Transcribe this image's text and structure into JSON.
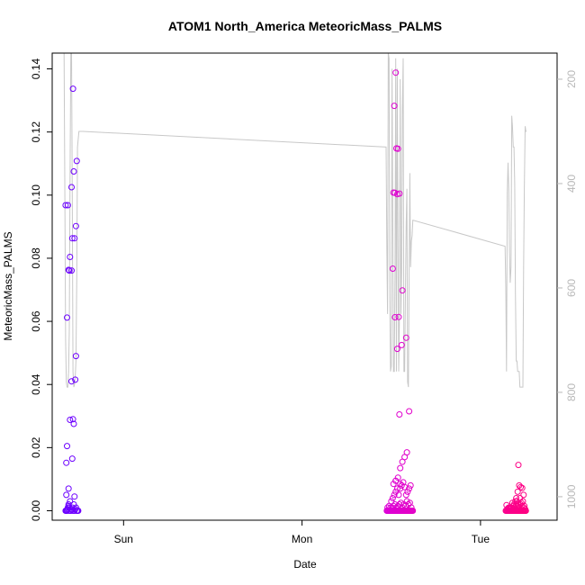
{
  "chart_data": {
    "type": "scatter",
    "title": "ATOM1 North_America MeteoricMass_PALMS",
    "xlabel": "Date",
    "ylabel": "MeteoricMass_PALMS",
    "x_ticks": [
      {
        "label": "Sun",
        "hours": 24
      },
      {
        "label": "Mon",
        "hours": 48
      },
      {
        "label": "Tue",
        "hours": 72
      }
    ],
    "xlim_hours": [
      14.4,
      82.3
    ],
    "ylim": [
      -0.003,
      0.145
    ],
    "y_ticks": [
      0.0,
      0.02,
      0.04,
      0.06,
      0.08,
      0.1,
      0.12,
      0.14
    ],
    "y_ticks_labels": [
      "0.00",
      "0.02",
      "0.04",
      "0.06",
      "0.08",
      "0.10",
      "0.12",
      "0.14"
    ],
    "y2lim": [
      1045,
      150
    ],
    "y2_ticks": [
      200,
      400,
      600,
      800,
      1000
    ],
    "y2_ticks_labels": [
      "200",
      "400",
      "600",
      "800",
      "1000"
    ],
    "colors": {
      "start": "#6a00ff",
      "mid": "#cc00ff",
      "end": "#ff0080",
      "pressure_line": "#c8c8c8"
    },
    "pressure": {
      "hours": [
        16.0,
        16.1,
        16.2,
        16.3,
        16.4,
        16.5,
        16.6,
        16.7,
        16.8,
        16.9,
        17.0,
        17.1,
        17.2,
        17.3,
        17.4,
        17.5,
        17.6,
        17.7,
        17.8,
        18.0,
        18.1,
        18.2,
        18.3,
        18.4,
        18.5,
        59.3,
        59.4,
        59.5,
        59.6,
        59.7,
        59.8,
        59.9,
        60.0,
        60.1,
        60.2,
        60.3,
        60.4,
        60.5,
        60.6,
        60.7,
        60.8,
        60.9,
        61.0,
        61.1,
        61.2,
        61.3,
        61.4,
        61.5,
        61.6,
        61.7,
        61.8,
        61.9,
        62.0,
        62.1,
        62.2,
        62.3,
        62.4,
        62.5,
        62.6,
        62.7,
        62.8,
        62.9,
        75.3,
        75.4,
        75.5,
        75.6,
        75.7,
        75.8,
        75.9,
        76.0,
        76.1,
        76.2,
        76.3,
        76.4,
        76.5,
        76.6,
        76.7,
        76.8,
        76.9,
        77.0,
        77.1,
        77.2,
        77.3,
        77.4,
        77.5,
        77.6,
        77.7,
        77.8,
        77.9,
        78.0,
        78.1,
        78.2
      ],
      "values": [
        150,
        400,
        700,
        780,
        790,
        790,
        760,
        680,
        400,
        150,
        150,
        420,
        760,
        790,
        785,
        770,
        740,
        580,
        330,
        300,
        300,
        300,
        300,
        300,
        300,
        330,
        520,
        650,
        150,
        160,
        620,
        760,
        750,
        180,
        450,
        760,
        760,
        580,
        160,
        760,
        180,
        500,
        760,
        660,
        200,
        650,
        570,
        260,
        160,
        760,
        760,
        610,
        480,
        410,
        780,
        790,
        570,
        380,
        560,
        510,
        500,
        470,
        520,
        600,
        760,
        420,
        360,
        410,
        530,
        590,
        560,
        270,
        290,
        330,
        330,
        400,
        610,
        740,
        740,
        760,
        760,
        760,
        790,
        790,
        790,
        790,
        790,
        560,
        410,
        290,
        300,
        300
      ]
    },
    "series": [
      {
        "x": [
          16.2,
          16.3,
          16.4,
          16.4,
          16.5,
          16.5,
          16.6,
          16.6,
          16.7,
          16.7,
          16.8,
          16.9,
          17.0,
          17.1,
          17.2,
          17.3,
          17.4,
          17.5,
          17.6,
          17.7,
          17.8,
          17.9,
          16.3,
          16.6,
          17.1,
          17.2,
          17.3,
          17.4,
          16.3,
          16.4,
          16.8,
          17.0,
          17.5,
          16.4,
          16.7,
          17.0,
          17.6,
          16.6,
          16.8,
          17.1,
          17.4,
          17.6,
          16.2,
          16.5,
          17.0,
          17.3,
          17.7,
          17.2
        ],
        "y": [
          0.0,
          0.0,
          0.0,
          0.0003,
          0.0005,
          0.001,
          0.0015,
          0.002,
          0.0,
          0.001,
          0.003,
          0.0,
          0.0005,
          0.001,
          0.0,
          0.002,
          0.0,
          0.0005,
          0.001,
          0.0,
          0.0,
          0.0,
          0.005,
          0.007,
          0.0165,
          0.029,
          0.0275,
          0.0045,
          0.0152,
          0.0205,
          0.0288,
          0.041,
          0.0415,
          0.0612,
          0.0761,
          0.0761,
          0.049,
          0.0763,
          0.0804,
          0.0863,
          0.0863,
          0.0902,
          0.0968,
          0.0968,
          0.1025,
          0.1075,
          0.1108,
          0.1337
        ]
      },
      {
        "x": [
          59.4,
          59.5,
          59.6,
          59.7,
          59.8,
          59.9,
          60.0,
          60.1,
          60.2,
          60.3,
          60.4,
          60.5,
          60.6,
          60.7,
          60.8,
          60.9,
          61.0,
          61.1,
          61.2,
          61.3,
          61.4,
          61.5,
          61.6,
          61.7,
          61.8,
          61.9,
          62.0,
          62.1,
          62.2,
          62.3,
          62.4,
          62.5,
          62.6,
          62.7,
          62.8,
          62.9,
          59.5,
          59.7,
          59.9,
          60.1,
          60.3,
          60.5,
          60.7,
          60.9,
          61.1,
          61.3,
          61.5,
          61.7,
          61.9,
          62.1,
          62.3,
          62.5,
          62.7,
          60.0,
          60.2,
          60.4,
          60.6,
          60.8,
          61.0,
          61.2,
          61.4,
          61.6,
          61.8,
          62.0,
          62.2,
          62.4,
          62.6,
          60.3,
          60.6,
          60.9,
          61.2,
          61.5,
          61.8,
          62.1,
          62.4,
          60.8,
          61.4,
          62.0,
          60.5,
          61.0,
          61.5,
          60.2,
          60.5,
          60.8,
          61.1,
          60.3,
          60.4,
          60.6,
          60.9,
          60.7,
          61.1,
          60.6,
          61.2
        ],
        "y": [
          0.0,
          0.0,
          0.0,
          0.0,
          0.0,
          0.0,
          0.0,
          0.0,
          0.0,
          0.0,
          0.0,
          0.0,
          0.0,
          0.0,
          0.0,
          0.0,
          0.0,
          0.0,
          0.0,
          0.0,
          0.0,
          0.0,
          0.0,
          0.0,
          0.0,
          0.0,
          0.0,
          0.0,
          0.0,
          0.0,
          0.0,
          0.0,
          0.0,
          0.0,
          0.0,
          0.0,
          0.001,
          0.0015,
          0.001,
          0.001,
          0.0015,
          0.002,
          0.001,
          0.0015,
          0.002,
          0.0025,
          0.001,
          0.002,
          0.0015,
          0.003,
          0.002,
          0.0025,
          0.001,
          0.003,
          0.004,
          0.005,
          0.006,
          0.007,
          0.005,
          0.007,
          0.008,
          0.009,
          0.0075,
          0.005,
          0.006,
          0.007,
          0.008,
          0.0085,
          0.0095,
          0.0105,
          0.0135,
          0.0155,
          0.017,
          0.0185,
          0.0315,
          0.0513,
          0.0525,
          0.0548,
          0.0613,
          0.0614,
          0.0698,
          0.0767,
          0.1007,
          0.1003,
          0.1005,
          0.1008,
          0.1283,
          0.1388,
          0.1147,
          0.1148,
          0.0305,
          0.0095,
          0.0085
        ]
      },
      {
        "x": [
          75.4,
          75.5,
          75.6,
          75.7,
          75.8,
          75.9,
          76.0,
          76.1,
          76.2,
          76.3,
          76.4,
          76.5,
          76.6,
          76.7,
          76.8,
          76.9,
          77.0,
          77.1,
          77.2,
          77.3,
          77.4,
          77.5,
          77.6,
          77.7,
          77.8,
          77.9,
          78.0,
          78.1,
          75.6,
          75.8,
          76.0,
          76.2,
          76.4,
          76.6,
          76.8,
          77.0,
          77.2,
          77.4,
          77.6,
          77.8,
          78.0,
          75.5,
          75.9,
          76.3,
          76.7,
          77.1,
          77.5,
          77.9,
          75.7,
          76.1,
          76.5,
          76.9,
          77.3,
          77.7,
          76.6,
          77.0,
          77.4,
          77.8,
          76.8,
          77.2,
          77.6,
          77.1
        ],
        "y": [
          0.0,
          0.0,
          0.0,
          0.0,
          0.0,
          0.0,
          0.0,
          0.0,
          0.0,
          0.0,
          0.0,
          0.0,
          0.0,
          0.0,
          0.0,
          0.0,
          0.0,
          0.0,
          0.0,
          0.0,
          0.0,
          0.0,
          0.0,
          0.0,
          0.0,
          0.0,
          0.0,
          0.0,
          0.0005,
          0.001,
          0.0005,
          0.001,
          0.0015,
          0.001,
          0.002,
          0.0015,
          0.001,
          0.002,
          0.0015,
          0.001,
          0.0005,
          0.0018,
          0.0008,
          0.0025,
          0.003,
          0.002,
          0.0025,
          0.0015,
          0.0008,
          0.001,
          0.002,
          0.003,
          0.004,
          0.003,
          0.0005,
          0.006,
          0.0075,
          0.005,
          0.004,
          0.008,
          0.0072,
          0.0145
        ]
      }
    ]
  }
}
